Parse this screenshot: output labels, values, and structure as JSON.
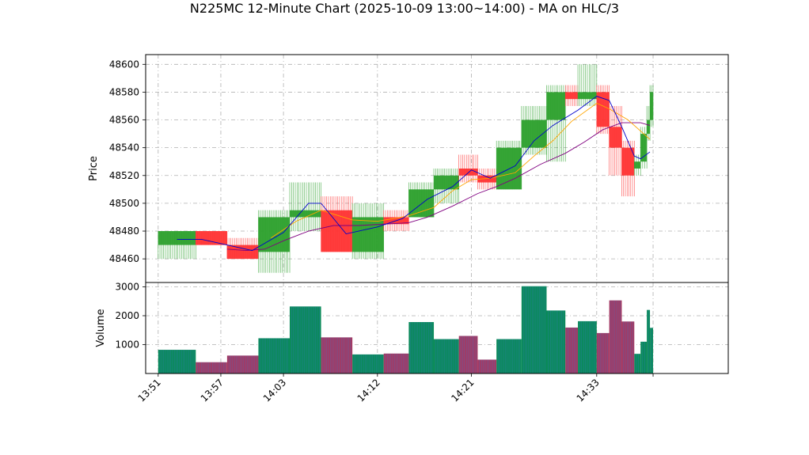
{
  "chart_data": {
    "type": "candlestick",
    "title": "N225MC 12-Minute Chart (2025-10-09 13:00~14:00) - MA on HLC/3",
    "price_panel": {
      "ylabel": "Price",
      "ylim": [
        48443,
        48607
      ],
      "yticks": [
        48460,
        48480,
        48500,
        48520,
        48540,
        48560,
        48580,
        48600
      ],
      "grid": true
    },
    "volume_panel": {
      "ylabel": "Volume",
      "ylim": [
        0,
        3150
      ],
      "yticks": [
        1000,
        2000,
        3000
      ],
      "grid": true
    },
    "x_axis": {
      "range": [
        13.83,
        14.76
      ],
      "tick_labels": [
        "13:51",
        "13:57",
        "14:03",
        "14:12",
        "14:21",
        "14:33"
      ],
      "tick_positions": [
        13.85,
        13.95,
        14.05,
        14.2,
        14.35,
        14.55
      ]
    },
    "colors": {
      "up": "#2ca02c",
      "down": "#ff3333",
      "vol_up": "#0a8a5a",
      "vol_down": "#a33a64",
      "ma_fast": "#0000cc",
      "ma_mid": "#ffa500",
      "ma_slow": "#800080"
    },
    "candles": [
      {
        "t0": 13.85,
        "t1": 13.91,
        "open": 48470,
        "high": 48480,
        "low": 48460,
        "close": 48480,
        "volume": 820
      },
      {
        "t0": 13.91,
        "t1": 13.96,
        "open": 48480,
        "high": 48480,
        "low": 48470,
        "close": 48470,
        "volume": 390
      },
      {
        "t0": 13.96,
        "t1": 14.01,
        "open": 48470,
        "high": 48475,
        "low": 48460,
        "close": 48460,
        "volume": 620
      },
      {
        "t0": 14.01,
        "t1": 14.06,
        "open": 48465,
        "high": 48495,
        "low": 48450,
        "close": 48490,
        "volume": 1220
      },
      {
        "t0": 14.06,
        "t1": 14.11,
        "open": 48490,
        "high": 48515,
        "low": 48480,
        "close": 48495,
        "volume": 2320
      },
      {
        "t0": 14.11,
        "t1": 14.16,
        "open": 48495,
        "high": 48505,
        "low": 48465,
        "close": 48465,
        "volume": 1250
      },
      {
        "t0": 14.16,
        "t1": 14.21,
        "open": 48465,
        "high": 48500,
        "low": 48460,
        "close": 48490,
        "volume": 660
      },
      {
        "t0": 14.21,
        "t1": 14.25,
        "open": 48490,
        "high": 48495,
        "low": 48480,
        "close": 48485,
        "volume": 690
      },
      {
        "t0": 14.25,
        "t1": 14.29,
        "open": 48490,
        "high": 48515,
        "low": 48490,
        "close": 48510,
        "volume": 1780
      },
      {
        "t0": 14.29,
        "t1": 14.33,
        "open": 48510,
        "high": 48525,
        "low": 48500,
        "close": 48520,
        "volume": 1190
      },
      {
        "t0": 14.33,
        "t1": 14.36,
        "open": 48525,
        "high": 48535,
        "low": 48515,
        "close": 48520,
        "volume": 1300
      },
      {
        "t0": 14.36,
        "t1": 14.39,
        "open": 48520,
        "high": 48525,
        "low": 48510,
        "close": 48515,
        "volume": 480
      },
      {
        "t0": 14.39,
        "t1": 14.43,
        "open": 48510,
        "high": 48545,
        "low": 48510,
        "close": 48540,
        "volume": 1190
      },
      {
        "t0": 14.43,
        "t1": 14.47,
        "open": 48540,
        "high": 48570,
        "low": 48535,
        "close": 48560,
        "volume": 3020
      },
      {
        "t0": 14.47,
        "t1": 14.5,
        "open": 48560,
        "high": 48585,
        "low": 48530,
        "close": 48580,
        "volume": 2180
      },
      {
        "t0": 14.5,
        "t1": 14.52,
        "open": 48580,
        "high": 48585,
        "low": 48570,
        "close": 48575,
        "volume": 1590
      },
      {
        "t0": 14.52,
        "t1": 14.55,
        "open": 48575,
        "high": 48600,
        "low": 48570,
        "close": 48580,
        "volume": 1810
      },
      {
        "t0": 14.55,
        "t1": 14.57,
        "open": 48580,
        "high": 48585,
        "low": 48550,
        "close": 48555,
        "volume": 1400
      },
      {
        "t0": 14.57,
        "t1": 14.59,
        "open": 48555,
        "high": 48570,
        "low": 48520,
        "close": 48540,
        "volume": 2530
      },
      {
        "t0": 14.59,
        "t1": 14.61,
        "open": 48540,
        "high": 48545,
        "low": 48505,
        "close": 48520,
        "volume": 1800
      },
      {
        "t0": 14.61,
        "t1": 14.62,
        "open": 48525,
        "high": 48535,
        "low": 48520,
        "close": 48530,
        "volume": 680
      },
      {
        "t0": 14.62,
        "t1": 14.63,
        "open": 48530,
        "high": 48555,
        "low": 48525,
        "close": 48550,
        "volume": 1100
      },
      {
        "t0": 14.63,
        "t1": 14.635,
        "open": 48550,
        "high": 48570,
        "low": 48545,
        "close": 48560,
        "volume": 2200
      },
      {
        "t0": 14.635,
        "t1": 14.64,
        "open": 48560,
        "high": 48585,
        "low": 48555,
        "close": 48580,
        "volume": 1580
      }
    ],
    "ma_fast": [
      [
        13.88,
        48474
      ],
      [
        13.92,
        48474
      ],
      [
        13.97,
        48469
      ],
      [
        14.0,
        48466
      ],
      [
        14.05,
        48479
      ],
      [
        14.09,
        48500
      ],
      [
        14.11,
        48500
      ],
      [
        14.15,
        48478
      ],
      [
        14.2,
        48483
      ],
      [
        14.24,
        48489
      ],
      [
        14.28,
        48503
      ],
      [
        14.32,
        48512
      ],
      [
        14.35,
        48524
      ],
      [
        14.38,
        48518
      ],
      [
        14.42,
        48527
      ],
      [
        14.45,
        48545
      ],
      [
        14.48,
        48556
      ],
      [
        14.52,
        48567
      ],
      [
        14.55,
        48577
      ],
      [
        14.57,
        48574
      ],
      [
        14.59,
        48555
      ],
      [
        14.61,
        48534
      ],
      [
        14.62,
        48532
      ],
      [
        14.635,
        48537
      ]
    ],
    "ma_mid": [
      [
        14.03,
        48475
      ],
      [
        14.07,
        48487
      ],
      [
        14.11,
        48495
      ],
      [
        14.16,
        48488
      ],
      [
        14.2,
        48487
      ],
      [
        14.25,
        48491
      ],
      [
        14.29,
        48497
      ],
      [
        14.32,
        48509
      ],
      [
        14.35,
        48517
      ],
      [
        14.38,
        48518
      ],
      [
        14.42,
        48522
      ],
      [
        14.45,
        48534
      ],
      [
        14.48,
        48545
      ],
      [
        14.51,
        48559
      ],
      [
        14.55,
        48572
      ],
      [
        14.57,
        48568
      ],
      [
        14.6,
        48560
      ],
      [
        14.62,
        48552
      ],
      [
        14.635,
        48546
      ]
    ],
    "ma_slow": [
      [
        13.96,
        48467
      ],
      [
        13.99,
        48466
      ],
      [
        14.02,
        48467
      ],
      [
        14.05,
        48473
      ],
      [
        14.09,
        48480
      ],
      [
        14.13,
        48484
      ],
      [
        14.17,
        48484
      ],
      [
        14.21,
        48485
      ],
      [
        14.25,
        48486
      ],
      [
        14.28,
        48490
      ],
      [
        14.32,
        48498
      ],
      [
        14.36,
        48507
      ],
      [
        14.39,
        48512
      ],
      [
        14.42,
        48518
      ],
      [
        14.46,
        48528
      ],
      [
        14.5,
        48536
      ],
      [
        14.53,
        48544
      ],
      [
        14.56,
        48553
      ],
      [
        14.59,
        48558
      ],
      [
        14.62,
        48558
      ],
      [
        14.635,
        48556
      ]
    ]
  }
}
